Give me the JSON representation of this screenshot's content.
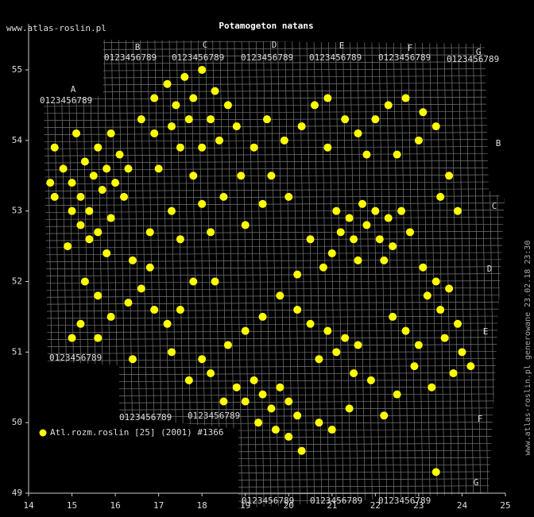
{
  "header": {
    "site": "www.atlas-roslin.pl",
    "generated": "www.atlas-roslin.pl generowane 23.02.18 23:30"
  },
  "chart_data": {
    "type": "scatter",
    "title": "Potamogeton natans",
    "color": "#ffff00",
    "legend": "Atl.rozm.roslin [25] (2001) #1366",
    "xlim": [
      14,
      25
    ],
    "ylim": [
      49,
      55.5
    ],
    "xticks": [
      14,
      15,
      16,
      17,
      18,
      19,
      20,
      21,
      22,
      23,
      24,
      25
    ],
    "yticks": [
      49,
      50,
      51,
      52,
      53,
      54,
      55
    ],
    "grid_letters": [
      "A",
      "B",
      "C",
      "D",
      "E",
      "F",
      "G"
    ],
    "grid_digits": "0123456789",
    "x": [
      14.6,
      14.8,
      15.0,
      15.2,
      15.4,
      15.0,
      15.2,
      15.5,
      15.7,
      15.3,
      15.6,
      15.9,
      16.1,
      15.8,
      16.0,
      15.1,
      14.6,
      14.5,
      15.6,
      16.2,
      15.9,
      15.4,
      14.9,
      16.3,
      16.6,
      16.9,
      17.2,
      17.6,
      18.0,
      17.4,
      17.8,
      18.3,
      16.9,
      17.3,
      17.7,
      18.2,
      18.6,
      17.5,
      18.0,
      18.4,
      17.0,
      17.8,
      18.8,
      19.2,
      18.9,
      19.5,
      19.9,
      20.3,
      20.6,
      19.6,
      20.0,
      19.4,
      18.5,
      18.0,
      17.3,
      16.8,
      17.5,
      18.2,
      19.0,
      20.9,
      21.3,
      21.6,
      22.0,
      22.3,
      22.7,
      23.1,
      23.4,
      23.0,
      22.5,
      21.8,
      20.9,
      23.7,
      23.9,
      23.5,
      21.1,
      21.4,
      21.7,
      22.0,
      22.3,
      22.6,
      21.2,
      21.5,
      21.8,
      22.1,
      22.4,
      22.8,
      21.0,
      21.6,
      22.2,
      20.8,
      20.5,
      20.2,
      23.1,
      23.4,
      23.7,
      23.2,
      23.5,
      23.9,
      23.6,
      24.0,
      24.2,
      23.8,
      23.3,
      23.0,
      22.7,
      22.4,
      22.9,
      22.5,
      22.2,
      23.4,
      20.5,
      20.9,
      21.3,
      21.1,
      21.6,
      20.7,
      21.5,
      21.9,
      20.2,
      19.8,
      19.4,
      19.0,
      18.6,
      18.8,
      19.0,
      19.2,
      19.4,
      19.6,
      19.8,
      20.0,
      20.2,
      19.3,
      19.7,
      20.0,
      20.3,
      20.7,
      21.0,
      21.4,
      18.5,
      18.2,
      15.3,
      15.6,
      15.2,
      15.6,
      15.9,
      16.3,
      16.6,
      16.9,
      17.2,
      17.5,
      16.8,
      16.4,
      15.8,
      17.8,
      18.3,
      17.3,
      16.4,
      15.0,
      17.7,
      18.0
    ],
    "y": [
      53.9,
      53.6,
      53.4,
      53.2,
      53.0,
      53.0,
      52.8,
      53.5,
      53.3,
      53.7,
      53.9,
      54.1,
      53.8,
      53.6,
      53.4,
      54.1,
      53.2,
      53.4,
      52.7,
      53.2,
      52.9,
      52.6,
      52.5,
      53.6,
      54.3,
      54.6,
      54.8,
      54.9,
      55.0,
      54.5,
      54.6,
      54.7,
      54.1,
      54.2,
      54.3,
      54.3,
      54.5,
      53.9,
      53.9,
      54.0,
      53.6,
      53.5,
      54.2,
      53.9,
      53.5,
      54.3,
      54.0,
      54.2,
      54.5,
      53.5,
      53.2,
      53.1,
      53.2,
      53.1,
      53.0,
      52.7,
      52.6,
      52.7,
      52.8,
      54.6,
      54.3,
      54.1,
      54.3,
      54.5,
      54.6,
      54.4,
      54.2,
      54.0,
      53.8,
      53.8,
      53.9,
      53.5,
      53.0,
      53.2,
      53.0,
      52.9,
      53.1,
      53.0,
      52.9,
      53.0,
      52.7,
      52.6,
      52.8,
      52.6,
      52.5,
      52.7,
      52.4,
      52.3,
      52.3,
      52.2,
      52.6,
      52.1,
      52.2,
      52.0,
      51.9,
      51.8,
      51.6,
      51.4,
      51.2,
      51.0,
      50.8,
      50.7,
      50.5,
      51.1,
      51.3,
      51.5,
      50.8,
      50.4,
      50.1,
      49.3,
      51.4,
      51.3,
      51.2,
      51.0,
      51.1,
      50.9,
      50.7,
      50.6,
      51.6,
      51.8,
      51.5,
      51.3,
      51.1,
      50.5,
      50.3,
      50.6,
      50.4,
      50.2,
      50.5,
      50.3,
      50.1,
      50.0,
      49.9,
      49.8,
      49.6,
      50.0,
      49.9,
      50.2,
      50.3,
      50.7,
      52.0,
      51.8,
      51.4,
      51.2,
      51.5,
      51.7,
      51.9,
      51.6,
      51.4,
      51.6,
      52.2,
      52.3,
      52.4,
      52.0,
      52.0,
      51.0,
      50.9,
      51.2,
      50.6,
      50.9
    ]
  }
}
